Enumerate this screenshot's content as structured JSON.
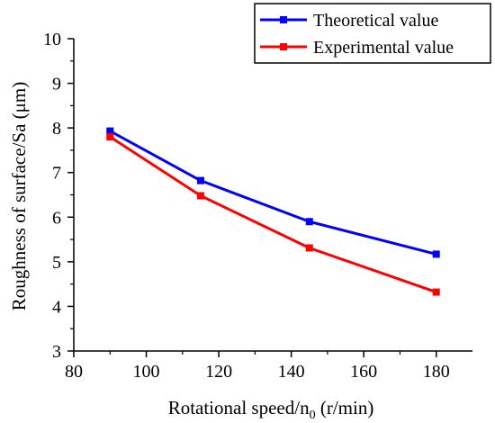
{
  "chart_data": {
    "type": "line",
    "title": "",
    "xlabel": "Rotational speed/n",
    "xlabel_subscript": "0",
    "xlabel_unit": " (r/min)",
    "ylabel": "Roughness of surface/Sa (μm)",
    "xlim": [
      80,
      190
    ],
    "ylim": [
      3,
      10
    ],
    "xticks": [
      "80",
      "100",
      "120",
      "140",
      "160",
      "180"
    ],
    "yticks": [
      "3",
      "4",
      "5",
      "6",
      "7",
      "8",
      "9",
      "10"
    ],
    "x": [
      90,
      115,
      145,
      180
    ],
    "series": [
      {
        "name": "Theoretical value",
        "values": [
          7.93,
          6.82,
          5.9,
          5.17
        ],
        "color": "#0000ff",
        "marker": "square"
      },
      {
        "name": "Experimental value",
        "values": [
          7.8,
          6.48,
          5.31,
          4.32
        ],
        "color": "#ff0000",
        "marker": "square"
      }
    ],
    "legend_position": "top-right",
    "grid": false
  }
}
